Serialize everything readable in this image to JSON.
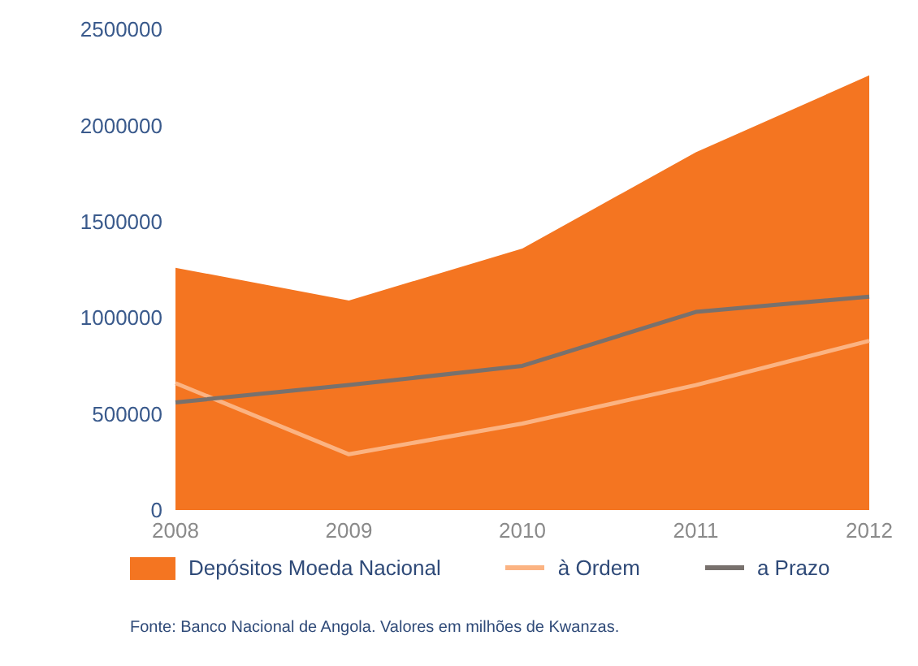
{
  "chart_data": {
    "type": "area",
    "categories": [
      "2008",
      "2009",
      "2010",
      "2011",
      "2012"
    ],
    "series": [
      {
        "name": "Depósitos Moeda Nacional",
        "color": "#f47521",
        "values": [
          1260000,
          1090000,
          1360000,
          1860000,
          2260000
        ]
      },
      {
        "name": "à Ordem",
        "type": "line",
        "color": "#fbb382",
        "values": [
          660000,
          290000,
          450000,
          650000,
          880000
        ]
      },
      {
        "name": "a Prazo",
        "type": "line",
        "color": "#78716d",
        "values": [
          560000,
          650000,
          750000,
          1030000,
          1110000
        ]
      }
    ],
    "ylim": [
      0,
      2500000
    ],
    "yticks": [
      0,
      500000,
      1000000,
      1500000,
      2000000,
      2500000
    ],
    "grid": false,
    "legend": "bottom",
    "marker": "none",
    "line_style": "solid",
    "annotations": [
      "Fonte: Banco Nacional de Angola. Valores em milhões de Kwanzas."
    ]
  }
}
